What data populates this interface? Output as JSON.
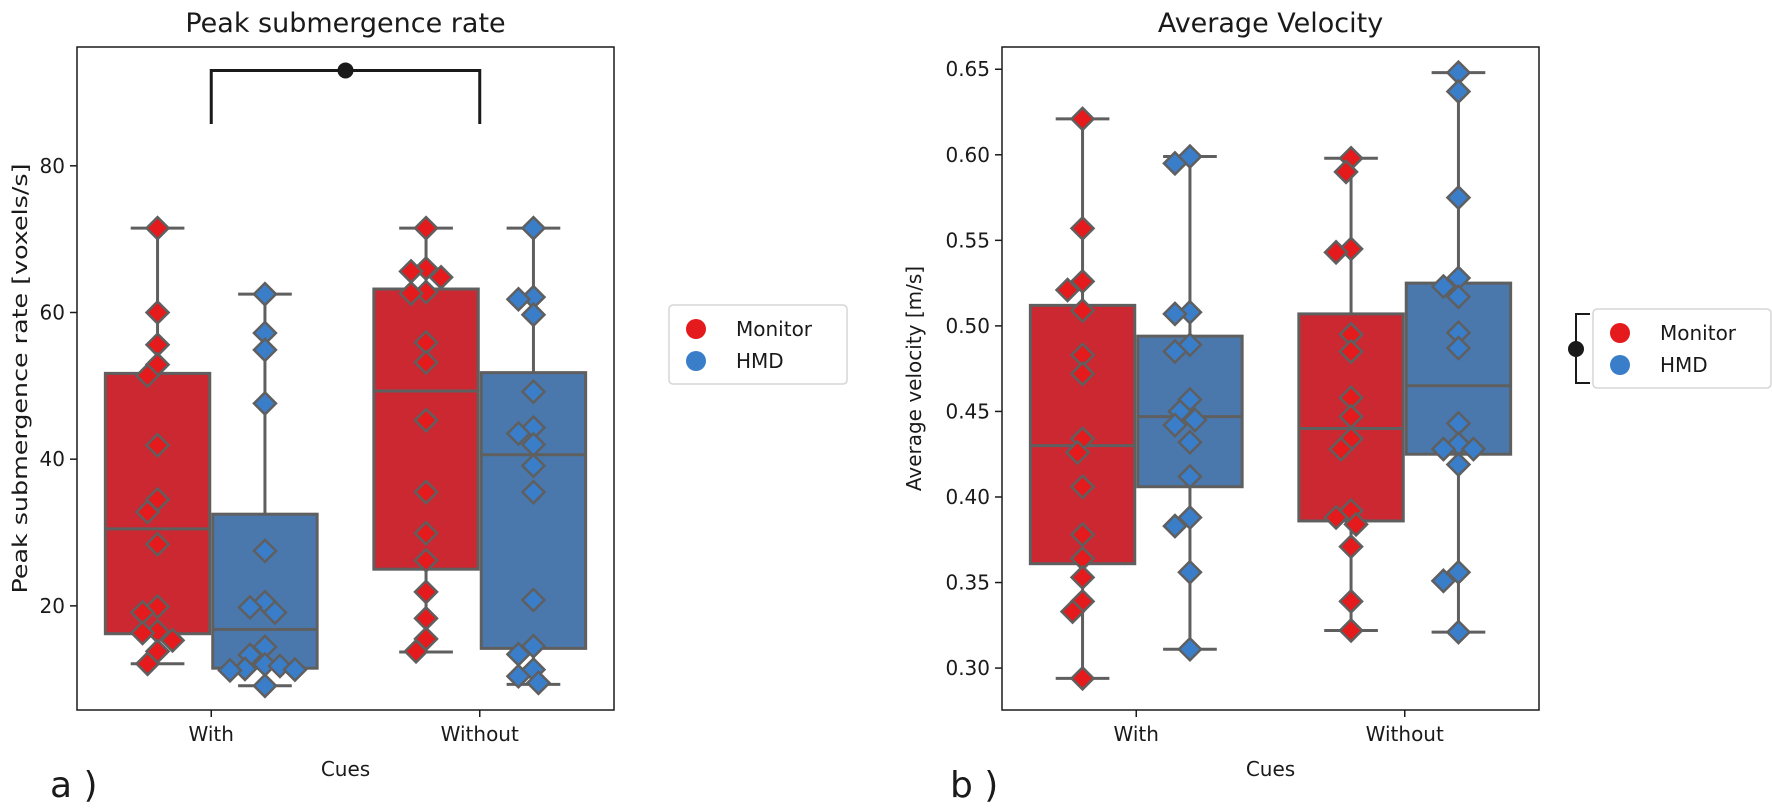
{
  "colors": {
    "monitor_box": "#cb2832",
    "monitor_point": "#e41a1c",
    "hmd_box": "#4a78ad",
    "hmd_point": "#3a7dc9",
    "edge": "#5f5f5f",
    "annotation": "#1a1a1a"
  },
  "chart_data": [
    {
      "type": "box",
      "panel_label": "a )",
      "title": "Peak submergence rate",
      "xlabel": "Cues",
      "ylabel": "Peak submergence rate [voxels/s]",
      "ylim": [
        5.8,
        96.2
      ],
      "yticks": [
        20,
        40,
        60,
        80
      ],
      "ytick_labels": [
        "20",
        "40",
        "60",
        "80"
      ],
      "categories": [
        "With",
        "Without"
      ],
      "legend": {
        "entries": [
          "Monitor",
          "HMD"
        ],
        "placement": "right-outside"
      },
      "annotation": {
        "type": "significance-bracket",
        "from": "With",
        "to": "Without",
        "y_top": 93,
        "y_bottom": 85.7
      },
      "series": [
        {
          "name": "Monitor",
          "boxes": [
            {
              "whisker_low": 12.1,
              "q1": 16.2,
              "median": 30.5,
              "q3": 51.7,
              "whisker_high": 71.5
            },
            {
              "whisker_low": 13.7,
              "q1": 25.0,
              "median": 49.3,
              "q3": 63.2,
              "whisker_high": 71.5
            }
          ],
          "points": [
            [
              71.5,
              60.0,
              55.6,
              52.9,
              51.4,
              41.9,
              34.5,
              32.8,
              28.4,
              19.9,
              19.1,
              16.5,
              16.3,
              15.3,
              13.8,
              12.1
            ],
            [
              71.5,
              66.0,
              65.6,
              64.8,
              62.8,
              62.6,
              55.9,
              53.2,
              45.3,
              35.5,
              29.9,
              26.2,
              21.9,
              18.3,
              15.5,
              13.8
            ]
          ]
        },
        {
          "name": "HMD",
          "boxes": [
            {
              "whisker_low": 9.1,
              "q1": 11.5,
              "median": 16.8,
              "q3": 32.5,
              "whisker_high": 62.5
            },
            {
              "whisker_low": 9.3,
              "q1": 14.2,
              "median": 40.6,
              "q3": 51.8,
              "whisker_high": 71.5
            }
          ],
          "points": [
            [
              62.5,
              57.2,
              54.9,
              47.6,
              27.5,
              20.5,
              19.8,
              19.1,
              14.4,
              13.3,
              12.0,
              11.8,
              11.4,
              11.3,
              11.2,
              9.1
            ],
            [
              71.5,
              62.1,
              61.8,
              59.7,
              49.2,
              44.3,
              43.5,
              42.0,
              39.1,
              35.5,
              20.8,
              14.5,
              13.4,
              11.3,
              10.4,
              9.5
            ]
          ]
        }
      ]
    },
    {
      "type": "box",
      "panel_label": "b )",
      "title": "Average Velocity",
      "xlabel": "Cues",
      "ylabel": "Average velocity [m/s]",
      "ylim": [
        0.2755,
        0.663
      ],
      "yticks": [
        0.3,
        0.35,
        0.4,
        0.45,
        0.5,
        0.55,
        0.6,
        0.65
      ],
      "ytick_labels": [
        "0.30",
        "0.35",
        "0.40",
        "0.45",
        "0.50",
        "0.55",
        "0.60",
        "0.65"
      ],
      "categories": [
        "With",
        "Without"
      ],
      "legend": {
        "entries": [
          "Monitor",
          "HMD"
        ],
        "placement": "right-outside",
        "bracket": true
      },
      "series": [
        {
          "name": "Monitor",
          "boxes": [
            {
              "whisker_low": 0.294,
              "q1": 0.361,
              "median": 0.43,
              "q3": 0.512,
              "whisker_high": 0.621
            },
            {
              "whisker_low": 0.322,
              "q1": 0.386,
              "median": 0.44,
              "q3": 0.507,
              "whisker_high": 0.598
            }
          ],
          "points": [
            [
              0.621,
              0.557,
              0.526,
              0.521,
              0.509,
              0.483,
              0.472,
              0.434,
              0.426,
              0.406,
              0.378,
              0.364,
              0.353,
              0.339,
              0.333,
              0.294
            ],
            [
              0.598,
              0.59,
              0.545,
              0.543,
              0.495,
              0.485,
              0.458,
              0.447,
              0.434,
              0.428,
              0.392,
              0.388,
              0.384,
              0.371,
              0.339,
              0.322
            ]
          ]
        },
        {
          "name": "HMD",
          "boxes": [
            {
              "whisker_low": 0.311,
              "q1": 0.406,
              "median": 0.447,
              "q3": 0.494,
              "whisker_high": 0.599
            },
            {
              "whisker_low": 0.321,
              "q1": 0.425,
              "median": 0.465,
              "q3": 0.525,
              "whisker_high": 0.648
            }
          ],
          "points": [
            [
              0.599,
              0.595,
              0.508,
              0.507,
              0.489,
              0.485,
              0.457,
              0.45,
              0.445,
              0.442,
              0.432,
              0.412,
              0.388,
              0.383,
              0.356,
              0.311
            ],
            [
              0.648,
              0.637,
              0.575,
              0.528,
              0.523,
              0.517,
              0.496,
              0.487,
              0.443,
              0.431,
              0.428,
              0.428,
              0.419,
              0.356,
              0.351,
              0.321
            ]
          ]
        }
      ]
    }
  ]
}
